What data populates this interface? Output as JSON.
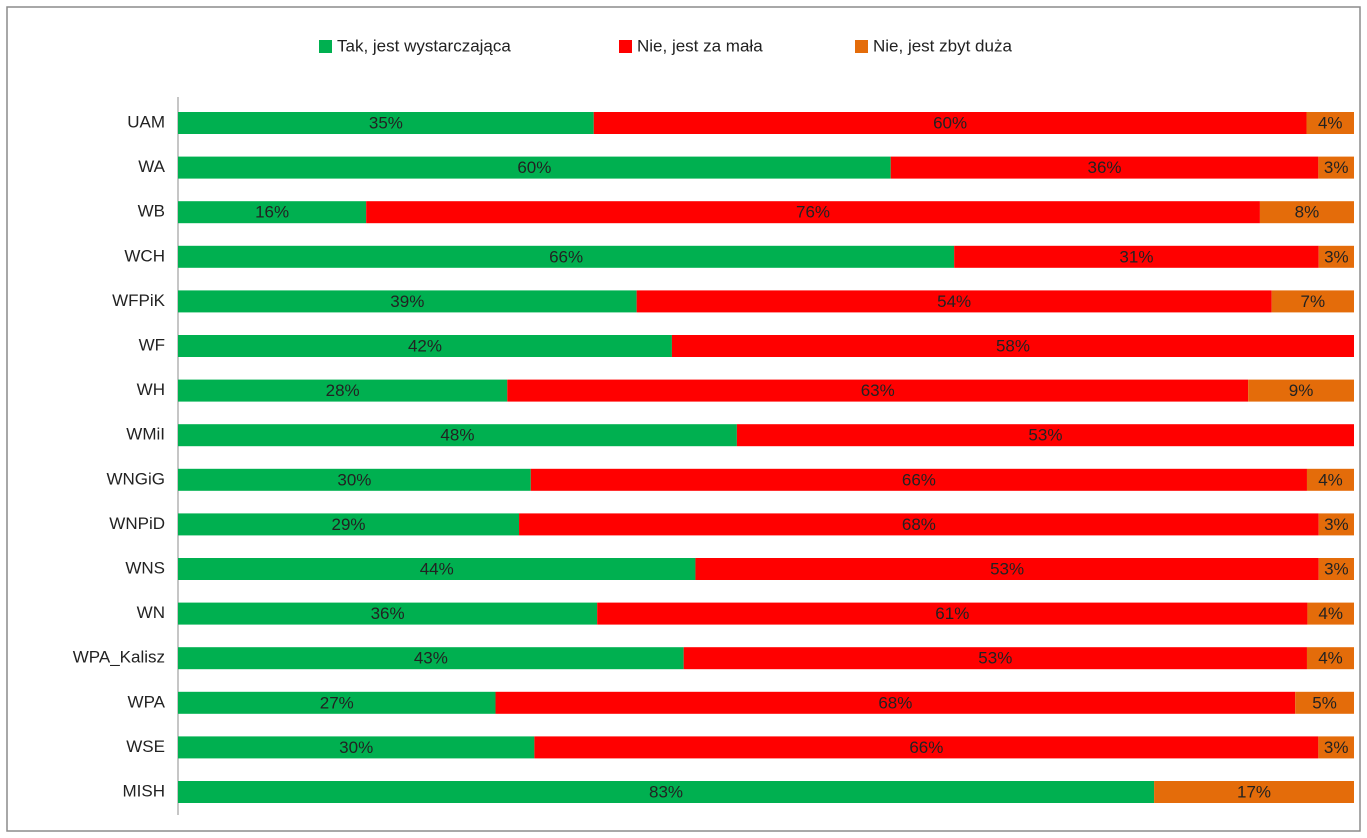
{
  "chart_data": {
    "type": "stacked-bar-100",
    "orientation": "horizontal",
    "categories": [
      "UAM",
      "WA",
      "WB",
      "WCH",
      "WFPiK",
      "WF",
      "WH",
      "WMiI",
      "WNGiG",
      "WNPiD",
      "WNS",
      "WN",
      "WPA_Kalisz",
      "WPA",
      "WSE",
      "MISH"
    ],
    "series": [
      {
        "name": "Tak, jest wystarczająca",
        "color": "#00b050",
        "values": [
          35,
          60,
          16,
          66,
          39,
          42,
          28,
          48,
          30,
          29,
          44,
          36,
          43,
          27,
          30,
          83
        ],
        "value_labels": [
          "35%",
          "60%",
          "16%",
          "66%",
          "39%",
          "42%",
          "28%",
          "48%",
          "30%",
          "29%",
          "44%",
          "36%",
          "43%",
          "27%",
          "30%",
          "83%"
        ]
      },
      {
        "name": "Nie, jest za mała",
        "color": "#ff0000",
        "values": [
          60,
          36,
          76,
          31,
          54,
          58,
          63,
          53,
          66,
          68,
          53,
          61,
          53,
          68,
          66,
          null
        ],
        "value_labels": [
          "60%",
          "36%",
          "76%",
          "31%",
          "54%",
          "58%",
          "63%",
          "53%",
          "66%",
          "68%",
          "53%",
          "61%",
          "53%",
          "68%",
          "66%",
          null
        ]
      },
      {
        "name": "Nie, jest zbyt duża",
        "color": "#e46c0a",
        "values": [
          4,
          3,
          8,
          3,
          7,
          null,
          9,
          null,
          4,
          3,
          3,
          4,
          4,
          5,
          3,
          17
        ],
        "value_labels": [
          "4%",
          "3%",
          "8%",
          "3%",
          "7%",
          null,
          "9%",
          null,
          "4%",
          "3%",
          "3%",
          "4%",
          "4%",
          "5%",
          "3%",
          "17%"
        ]
      }
    ],
    "legend": "top"
  }
}
